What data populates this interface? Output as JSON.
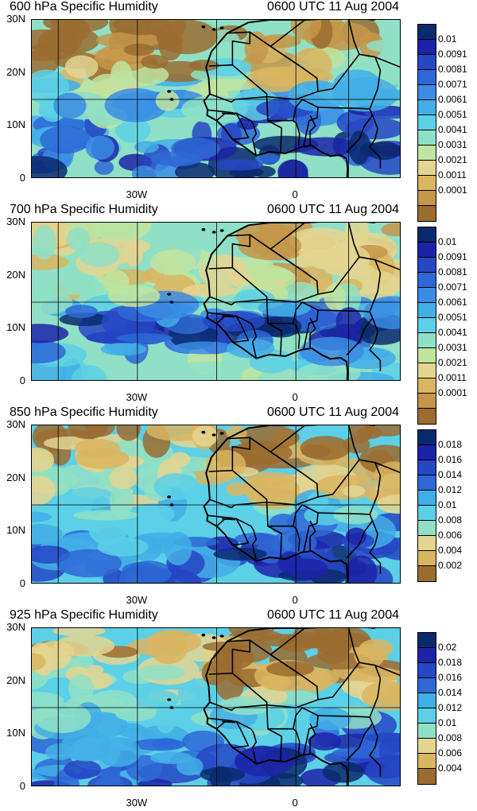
{
  "panels": [
    {
      "title_left": "600 hPa Specific Humidity",
      "title_right": "0600 UTC 11 Aug 2004",
      "colorbar_labels": [
        "0.01",
        "0.0091",
        "0.0081",
        "0.0071",
        "0.0061",
        "0.0051",
        "0.0041",
        "0.0031",
        "0.0021",
        "0.0011",
        "0.0001"
      ],
      "colorbar_colors": [
        "#0a2a6e",
        "#1c23a8",
        "#2646c4",
        "#2e68d6",
        "#3a8ce4",
        "#42aee6",
        "#5cd0e6",
        "#8fe0c6",
        "#bfe4a0",
        "#e4d590",
        "#d9b560",
        "#c4964a",
        "#9b6c30"
      ],
      "fill": "moist-south"
    },
    {
      "title_left": "700 hPa Specific Humidity",
      "title_right": "0600 UTC 11 Aug 2004",
      "colorbar_labels": [
        "0.01",
        "0.0091",
        "0.0081",
        "0.0071",
        "0.0061",
        "0.0051",
        "0.0041",
        "0.0031",
        "0.0021",
        "0.0011",
        "0.0001"
      ],
      "colorbar_colors": [
        "#0a2a6e",
        "#1c23a8",
        "#2646c4",
        "#2e68d6",
        "#3a8ce4",
        "#42aee6",
        "#5cd0e6",
        "#8fe0c6",
        "#bfe4a0",
        "#e4d590",
        "#d9b560",
        "#c4964a",
        "#9b6c30"
      ],
      "fill": "moist-band"
    },
    {
      "title_left": "850 hPa Specific Humidity",
      "title_right": "0600 UTC 11 Aug 2004",
      "colorbar_labels": [
        "0.018",
        "0.016",
        "0.014",
        "0.012",
        "0.01",
        "0.008",
        "0.006",
        "0.004",
        "0.002"
      ],
      "colorbar_colors": [
        "#0a2a6e",
        "#1c23a8",
        "#2646c4",
        "#2e68d6",
        "#42aee6",
        "#5cd0e6",
        "#8fe0c6",
        "#e4d590",
        "#d9b560",
        "#9b6c30"
      ],
      "fill": "dry-sahara"
    },
    {
      "title_left": "925 hPa Specific Humidity",
      "title_right": "0600 UTC 11 Aug 2004",
      "colorbar_labels": [
        "0.02",
        "0.018",
        "0.016",
        "0.014",
        "0.012",
        "0.01",
        "0.008",
        "0.006",
        "0.004"
      ],
      "colorbar_colors": [
        "#0a2a6e",
        "#1c23a8",
        "#2646c4",
        "#2e68d6",
        "#42aee6",
        "#5cd0e6",
        "#8fe0c6",
        "#e4d590",
        "#d9b560",
        "#9b6c30"
      ],
      "fill": "dry-sahara"
    }
  ],
  "axis": {
    "y_labels": [
      "30N",
      "20N",
      "10N",
      "0"
    ],
    "x_labels": [
      "30W",
      "0"
    ]
  }
}
